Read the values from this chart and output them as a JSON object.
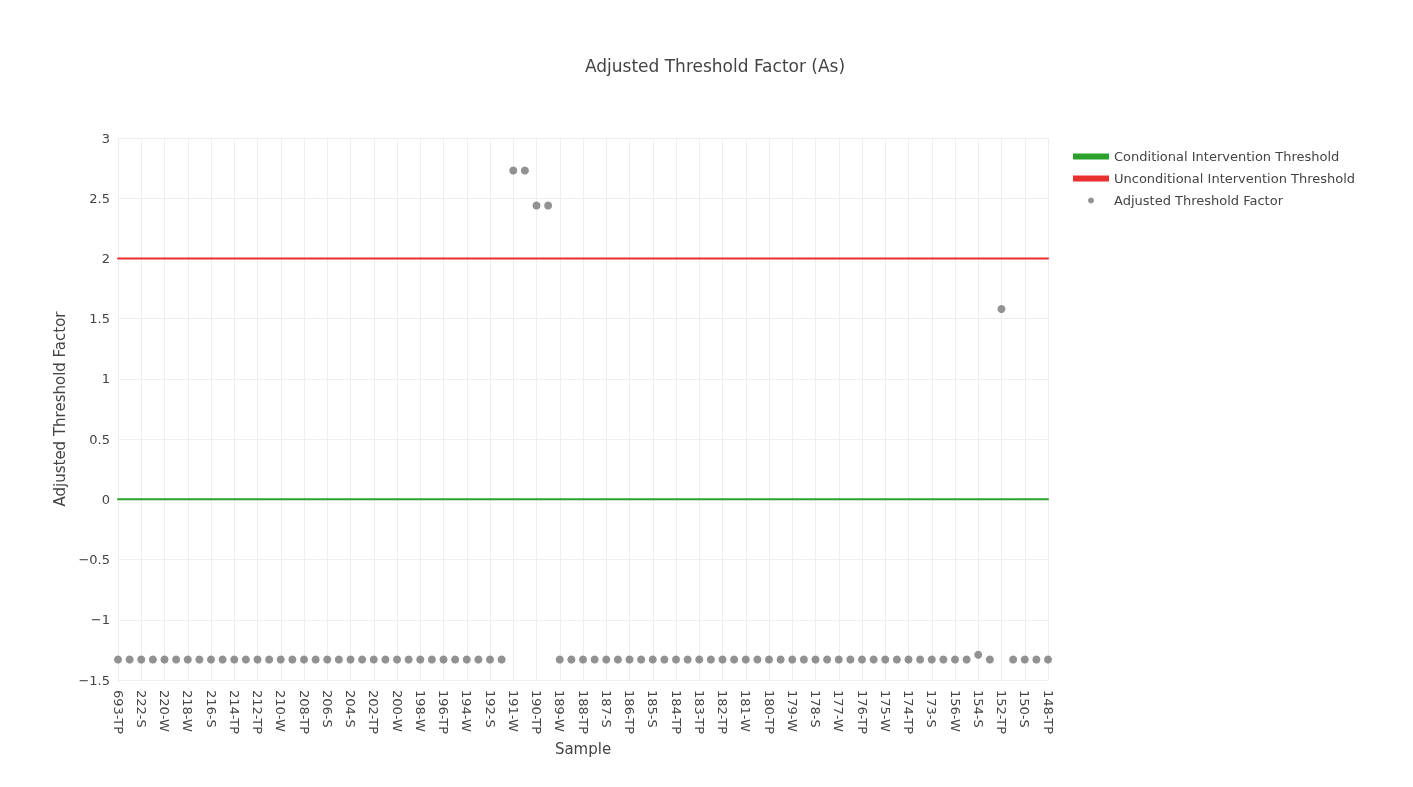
{
  "chart_data": {
    "type": "scatter",
    "title": "Adjusted Threshold Factor (As)",
    "xlabel": "Sample",
    "ylabel": "Adjusted Threshold Factor",
    "categories": [
      "693-TP",
      null,
      "222-S",
      null,
      "220-W",
      null,
      "218-W",
      null,
      "216-S",
      null,
      "214-TP",
      null,
      "212-TP",
      null,
      "210-W",
      null,
      "208-TP",
      null,
      "206-S",
      null,
      "204-S",
      null,
      "202-TP",
      null,
      "200-W",
      null,
      "198-W",
      null,
      "196-TP",
      null,
      "194-W",
      null,
      "192-S",
      null,
      "191-W",
      null,
      "190-TP",
      null,
      "189-W",
      null,
      "188-TP",
      null,
      "187-S",
      null,
      "186-TP",
      null,
      "185-S",
      null,
      "184-TP",
      null,
      "183-TP",
      null,
      "182-TP",
      null,
      "181-W",
      null,
      "180-TP",
      null,
      "179-W",
      null,
      "178-S",
      null,
      "177-W",
      null,
      "176-TP",
      null,
      "175-W",
      null,
      "174-TP",
      null,
      "173-S",
      null,
      "156-W",
      null,
      "154-S",
      null,
      "152-TP",
      null,
      "150-S",
      null,
      "148-TP"
    ],
    "series": [
      {
        "name": "Conditional Intervention Threshold",
        "type": "line",
        "marker": "none",
        "color": "#2ca02c",
        "values": [
          0,
          0,
          0,
          0,
          0,
          0,
          0,
          0,
          0,
          0,
          0,
          0,
          0,
          0,
          0,
          0,
          0,
          0,
          0,
          0,
          0,
          0,
          0,
          0,
          0,
          0,
          0,
          0,
          0,
          0,
          0,
          0,
          0,
          0,
          0,
          0,
          0,
          0,
          0,
          0,
          0,
          0,
          0,
          0,
          0,
          0,
          0,
          0,
          0,
          0,
          0,
          0,
          0,
          0,
          0,
          0,
          0,
          0,
          0,
          0,
          0,
          0,
          0,
          0,
          0,
          0,
          0,
          0,
          0,
          0,
          0,
          0,
          0,
          0,
          0,
          0,
          0,
          0,
          0,
          0,
          0
        ]
      },
      {
        "name": "Unconditional Intervention Threshold",
        "type": "line",
        "marker": "none",
        "color": "#e8302f",
        "values": [
          2,
          2,
          2,
          2,
          2,
          2,
          2,
          2,
          2,
          2,
          2,
          2,
          2,
          2,
          2,
          2,
          2,
          2,
          2,
          2,
          2,
          2,
          2,
          2,
          2,
          2,
          2,
          2,
          2,
          2,
          2,
          2,
          2,
          2,
          2,
          2,
          2,
          2,
          2,
          2,
          2,
          2,
          2,
          2,
          2,
          2,
          2,
          2,
          2,
          2,
          2,
          2,
          2,
          2,
          2,
          2,
          2,
          2,
          2,
          2,
          2,
          2,
          2,
          2,
          2,
          2,
          2,
          2,
          2,
          2,
          2,
          2,
          2,
          2,
          2,
          2,
          2,
          2,
          2,
          2,
          2
        ]
      },
      {
        "name": "Adjusted Threshold Factor",
        "marker": "circle",
        "color": "#777777",
        "values": [
          -1.33,
          -1.33,
          -1.33,
          -1.33,
          -1.33,
          -1.33,
          -1.33,
          -1.33,
          -1.33,
          -1.33,
          -1.33,
          -1.33,
          -1.33,
          -1.33,
          -1.33,
          -1.33,
          -1.33,
          -1.33,
          -1.33,
          -1.33,
          -1.33,
          -1.33,
          -1.33,
          -1.33,
          -1.33,
          -1.33,
          -1.33,
          -1.33,
          -1.33,
          -1.33,
          -1.33,
          -1.33,
          -1.33,
          -1.33,
          2.73,
          2.73,
          2.44,
          2.44,
          -1.33,
          -1.33,
          -1.33,
          -1.33,
          -1.33,
          -1.33,
          -1.33,
          -1.33,
          -1.33,
          -1.33,
          -1.33,
          -1.33,
          -1.33,
          -1.33,
          -1.33,
          -1.33,
          -1.33,
          -1.33,
          -1.33,
          -1.33,
          -1.33,
          -1.33,
          -1.33,
          -1.33,
          -1.33,
          -1.33,
          -1.33,
          -1.33,
          -1.33,
          -1.33,
          -1.33,
          -1.33,
          -1.33,
          -1.33,
          -1.33,
          -1.33,
          -1.29,
          -1.33,
          1.58,
          -1.33,
          -1.33,
          -1.33,
          -1.33
        ]
      }
    ],
    "ylim": [
      -1.5,
      3
    ],
    "yticks": [
      {
        "value": -1.5,
        "label": "−1.5"
      },
      {
        "value": -1,
        "label": "−1"
      },
      {
        "value": -0.5,
        "label": "−0.5"
      },
      0,
      0.5,
      1,
      1.5,
      2,
      2.5,
      3
    ],
    "grid": true,
    "legend": "top right"
  }
}
